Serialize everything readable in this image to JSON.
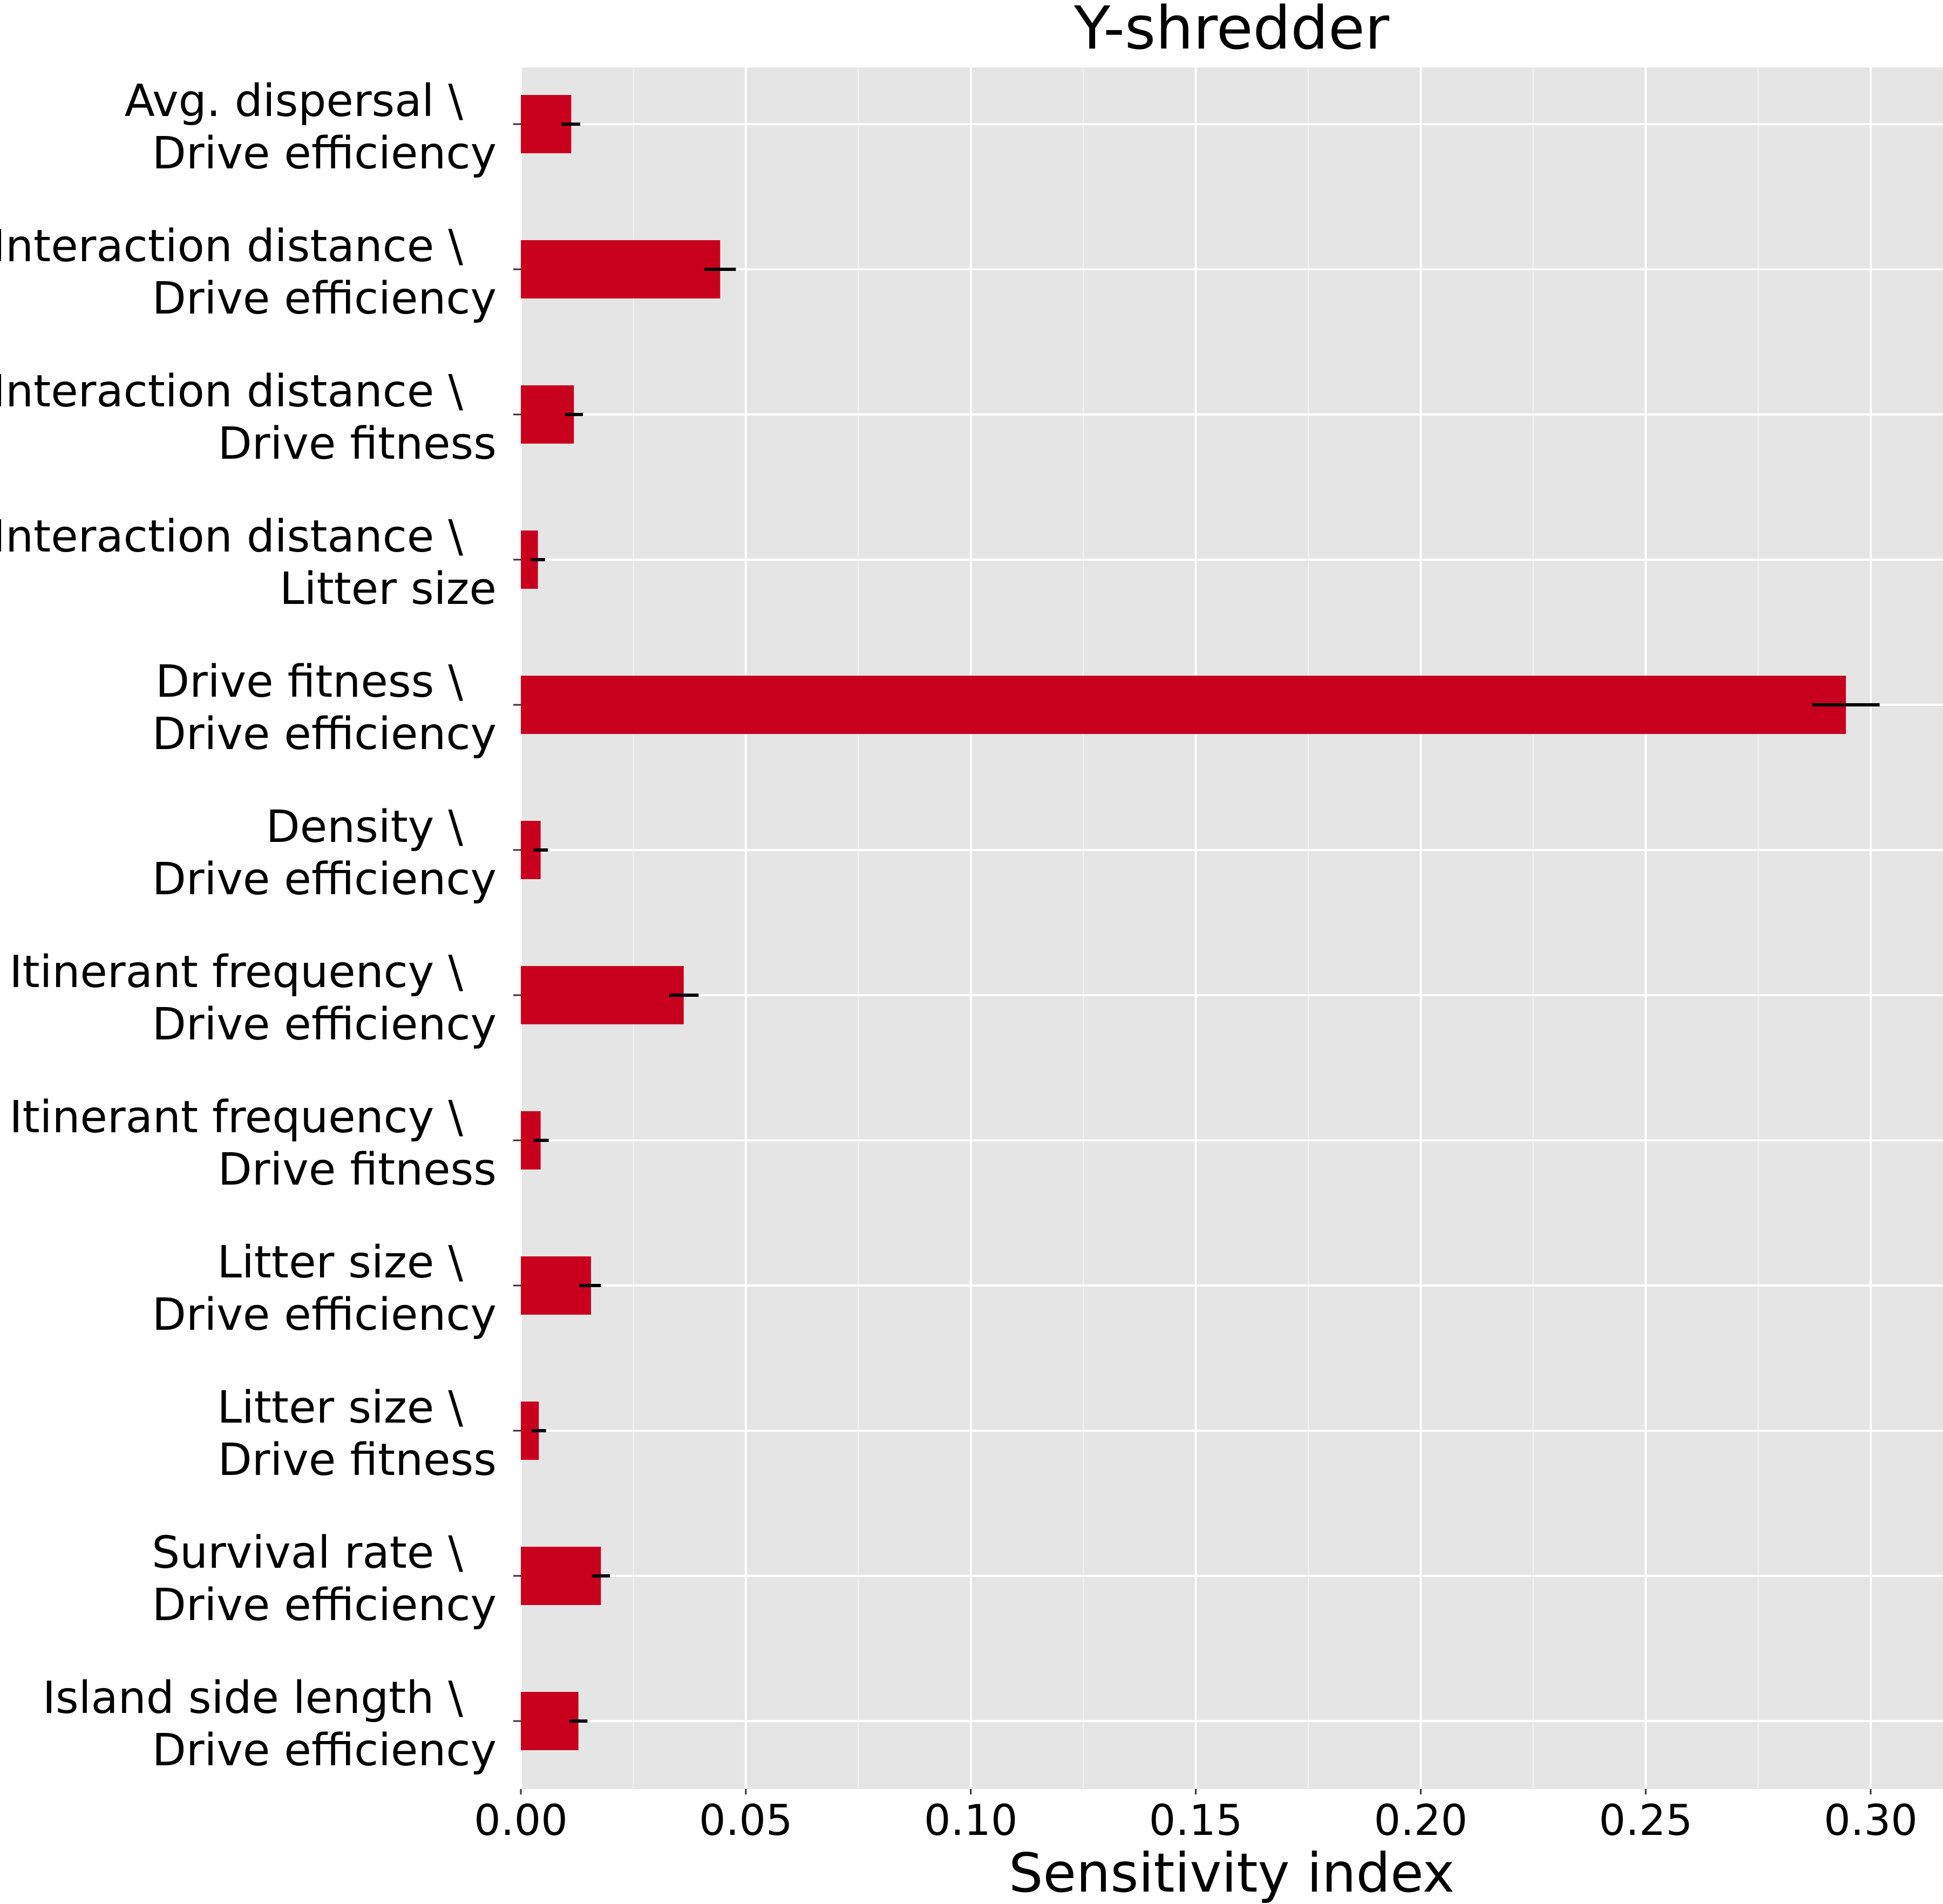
{
  "chart_data": {
    "type": "bar",
    "orientation": "horizontal",
    "title": "Y-shredder",
    "xlabel": "Sensitivity index",
    "ylabel": "",
    "xlim": [
      0,
      0.315
    ],
    "xticks": [
      "0.00",
      "0.05",
      "0.10",
      "0.15",
      "0.20",
      "0.25",
      "0.30"
    ],
    "grid": true,
    "bar_color": "#c8001e",
    "panel_color": "#e5e5e5",
    "categories": [
      [
        "Avg. dispersal \\",
        "Drive efficiency"
      ],
      [
        "Interaction distance \\",
        "Drive efficiency"
      ],
      [
        "Interaction distance \\",
        "Drive fitness"
      ],
      [
        "Interaction distance \\",
        "Litter size"
      ],
      [
        "Drive fitness \\",
        "Drive efficiency"
      ],
      [
        "Density \\",
        "Drive efficiency"
      ],
      [
        "Itinerant frequency \\",
        "Drive efficiency"
      ],
      [
        "Itinerant frequency \\",
        "Drive fitness"
      ],
      [
        "Litter size \\",
        "Drive efficiency"
      ],
      [
        "Litter size \\",
        "Drive fitness"
      ],
      [
        "Survival rate \\",
        "Drive efficiency"
      ],
      [
        "Island side length \\",
        "Drive efficiency"
      ]
    ],
    "values": [
      0.0112,
      0.0443,
      0.0118,
      0.0038,
      0.2945,
      0.0044,
      0.0362,
      0.0044,
      0.0156,
      0.004,
      0.0178,
      0.0128
    ],
    "error_low": [
      0.009,
      0.0408,
      0.0098,
      0.0022,
      0.287,
      0.0028,
      0.033,
      0.0028,
      0.013,
      0.0024,
      0.0158,
      0.0108
    ],
    "error_high": [
      0.0132,
      0.0478,
      0.0138,
      0.0054,
      0.302,
      0.006,
      0.0395,
      0.0062,
      0.0178,
      0.0056,
      0.0198,
      0.0148
    ]
  }
}
